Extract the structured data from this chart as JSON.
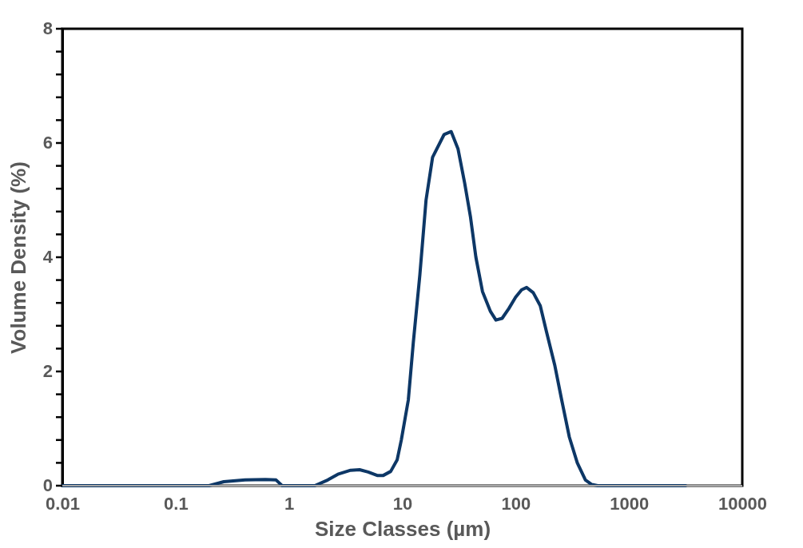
{
  "chart_data": {
    "type": "line",
    "xlabel": "Size Classes (µm)",
    "ylabel": "Volume Density (%)",
    "log": "x",
    "xlim": [
      0.01,
      10000
    ],
    "xticks": [
      {
        "value": 0.01,
        "label": "0.01"
      },
      {
        "value": 0.1,
        "label": "0.1"
      },
      1,
      10,
      100,
      1000,
      10000
    ],
    "ylim": [
      0,
      8
    ],
    "yticks": [
      0,
      {
        "value": 0.4,
        "label": null
      },
      {
        "value": 0.8,
        "label": null
      },
      {
        "value": 1.2,
        "label": null
      },
      {
        "value": 1.6,
        "label": null
      },
      2,
      {
        "value": 2.4,
        "label": null
      },
      {
        "value": 2.8,
        "label": null
      },
      {
        "value": 3.2,
        "label": null
      },
      {
        "value": 3.6,
        "label": null
      },
      4,
      {
        "value": 4.4,
        "label": null
      },
      {
        "value": 4.8,
        "label": null
      },
      {
        "value": 5.2,
        "label": null
      },
      {
        "value": 5.6,
        "label": null
      },
      6,
      {
        "value": 6.4,
        "label": null
      },
      {
        "value": 6.8,
        "label": null
      },
      {
        "value": 7.2,
        "label": null
      },
      {
        "value": 7.6,
        "label": null
      },
      8
    ],
    "grid": false,
    "marker": "none",
    "line_style": "solid",
    "x": [
      0.01,
      0.05,
      0.197,
      0.266,
      0.41,
      0.62,
      0.77,
      0.87,
      1.0,
      1.69,
      2.2,
      2.7,
      3.5,
      4.2,
      5.0,
      6.0,
      6.8,
      7.9,
      9.0,
      9.8,
      11.3,
      12.5,
      14.3,
      16.2,
      18.5,
      23.4,
      27,
      31,
      35.5,
      40,
      44.6,
      51,
      60,
      67,
      76,
      87,
      100,
      113,
      125,
      143,
      165,
      187,
      222,
      255,
      298,
      350,
      413,
      470,
      530,
      1000,
      3162
    ],
    "series": [
      {
        "color": "#0d3766",
        "values": [
          0,
          0,
          0,
          0.07,
          0.1,
          0.11,
          0.1,
          0,
          0,
          0,
          0.1,
          0.2,
          0.27,
          0.28,
          0.24,
          0.18,
          0.18,
          0.25,
          0.45,
          0.8,
          1.5,
          2.5,
          3.7,
          5.0,
          5.75,
          6.15,
          6.2,
          5.9,
          5.3,
          4.7,
          4.0,
          3.4,
          3.05,
          2.9,
          2.93,
          3.1,
          3.3,
          3.43,
          3.47,
          3.38,
          3.15,
          2.7,
          2.1,
          1.5,
          0.85,
          0.4,
          0.1,
          0.02,
          0,
          0,
          0
        ]
      }
    ]
  }
}
